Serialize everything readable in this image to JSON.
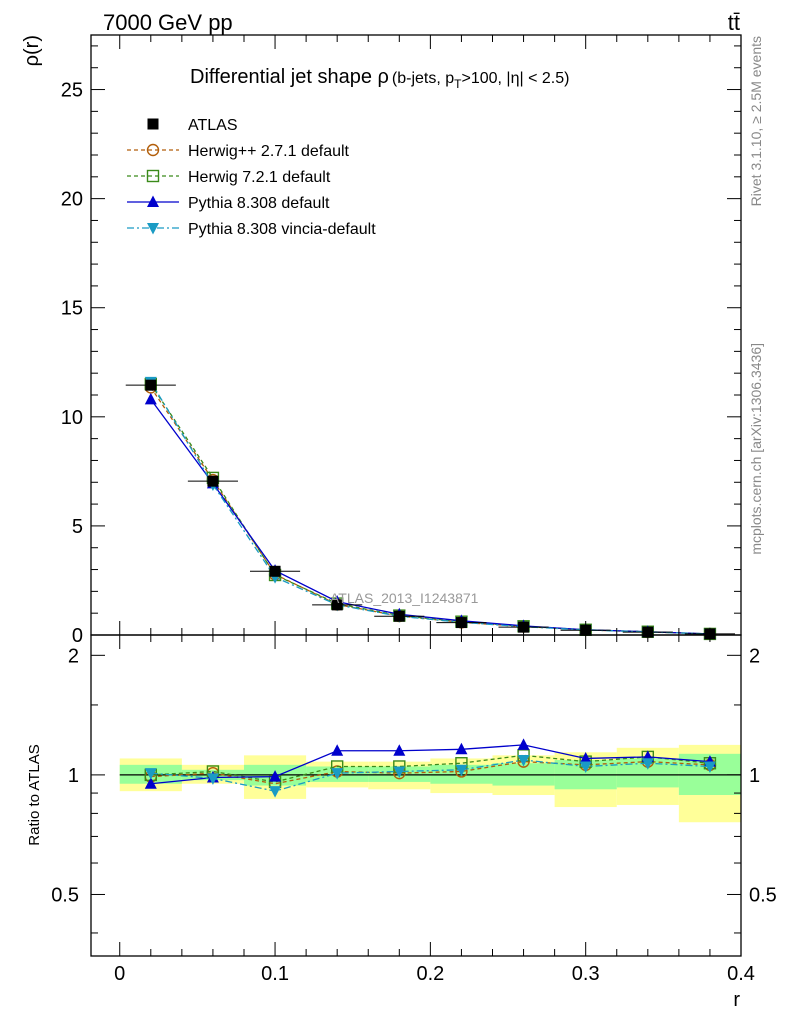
{
  "header": {
    "left": "7000 GeV pp",
    "right": "tt̄"
  },
  "side_labels": {
    "rivet": "Rivet 3.1.10, ≥ 2.5M events",
    "mcplots": "mcplots.cern.ch [arXiv:1306.3436]"
  },
  "chart_data": {
    "type": "line",
    "title": "Differential jet shape ρ (b-jets, pT>100, |η| < 2.5)",
    "title_main": "Differential jet shape ρ",
    "title_sub": "(b-jets, p",
    "title_sub_T": "T",
    "title_sub_rest": ">100, |η| < 2.5)",
    "watermark": "ATLAS_2013_I1243871",
    "xlabel": "r",
    "ylabel": "ρ(r)",
    "ratio_ylabel": "Ratio to ATLAS",
    "xlim": [
      0,
      0.4
    ],
    "ylim": [
      0,
      27.5
    ],
    "ratio_ylim": [
      0.35,
      2.25
    ],
    "grid": false,
    "legend_position": "top-left",
    "x_ticks": [
      "0",
      "0.1",
      "0.2",
      "0.3",
      "0.4"
    ],
    "x_tick_values": [
      0,
      0.1,
      0.2,
      0.3,
      0.4
    ],
    "y_ticks": [
      "0",
      "5",
      "10",
      "15",
      "20",
      "25"
    ],
    "y_tick_values": [
      0,
      5,
      10,
      15,
      20,
      25
    ],
    "ratio_ticks": [
      "0.5",
      "1",
      "2"
    ],
    "ratio_tick_values": [
      0.5,
      1,
      2
    ],
    "x": [
      0.02,
      0.06,
      0.1,
      0.14,
      0.18,
      0.22,
      0.26,
      0.3,
      0.34,
      0.38
    ],
    "bin_edges": [
      0,
      0.04,
      0.08,
      0.12,
      0.16,
      0.2,
      0.24,
      0.28,
      0.32,
      0.36,
      0.4
    ],
    "data": {
      "name": "ATLAS",
      "values": [
        11.45,
        7.05,
        2.92,
        1.38,
        0.86,
        0.57,
        0.36,
        0.22,
        0.13,
        0.05
      ],
      "green_band": [
        [
          0.95,
          1.06
        ],
        [
          0.97,
          1.03
        ],
        [
          0.94,
          1.06
        ],
        [
          0.96,
          1.05
        ],
        [
          0.96,
          1.05
        ],
        [
          0.95,
          1.06
        ],
        [
          0.94,
          1.07
        ],
        [
          0.92,
          1.09
        ],
        [
          0.93,
          1.1
        ],
        [
          0.89,
          1.13
        ]
      ],
      "yellow_band": [
        [
          0.91,
          1.1
        ],
        [
          0.95,
          1.06
        ],
        [
          0.87,
          1.12
        ],
        [
          0.93,
          1.08
        ],
        [
          0.92,
          1.08
        ],
        [
          0.9,
          1.1
        ],
        [
          0.89,
          1.12
        ],
        [
          0.83,
          1.14
        ],
        [
          0.84,
          1.17
        ],
        [
          0.76,
          1.19
        ]
      ]
    },
    "series": [
      {
        "name": "Herwig++ 2.7.1 default",
        "color": "#b25e0a",
        "marker": "circle-open",
        "dash": "4,3",
        "values": [
          11.35,
          7.1,
          2.78,
          1.4,
          0.87,
          0.58,
          0.39,
          0.23,
          0.14,
          0.05
        ],
        "ratio": [
          0.99,
          1.01,
          0.95,
          1.02,
          1.01,
          1.02,
          1.08,
          1.06,
          1.08,
          1.06
        ]
      },
      {
        "name": "Herwig 7.2.1 default",
        "color": "#3a8a1a",
        "marker": "square-open",
        "dash": "4,3",
        "values": [
          11.5,
          7.2,
          2.75,
          1.44,
          0.89,
          0.61,
          0.4,
          0.24,
          0.15,
          0.05
        ],
        "ratio": [
          1.0,
          1.02,
          0.96,
          1.05,
          1.05,
          1.07,
          1.12,
          1.08,
          1.11,
          1.07
        ]
      },
      {
        "name": "Pythia 8.308 default",
        "color": "#0000cc",
        "marker": "triangle-up",
        "dash": "",
        "values": [
          10.8,
          6.95,
          2.95,
          1.53,
          0.95,
          0.65,
          0.42,
          0.24,
          0.15,
          0.05
        ],
        "ratio": [
          0.95,
          0.985,
          0.99,
          1.15,
          1.15,
          1.16,
          1.19,
          1.1,
          1.11,
          1.08
        ]
      },
      {
        "name": "Pythia 8.308 vincia-default",
        "color": "#1a9bc4",
        "marker": "triangle-down",
        "dash": "7,3,2,3",
        "values": [
          11.6,
          6.9,
          2.65,
          1.38,
          0.86,
          0.58,
          0.38,
          0.23,
          0.14,
          0.05
        ],
        "ratio": [
          1.01,
          0.98,
          0.91,
          1.01,
          1.02,
          1.03,
          1.09,
          1.05,
          1.07,
          1.05
        ]
      }
    ]
  }
}
